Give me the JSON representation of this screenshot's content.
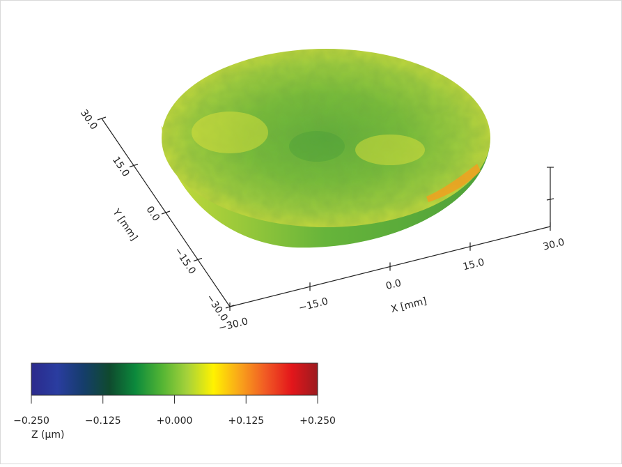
{
  "chart_data": {
    "type": "surface3d",
    "title": "",
    "x_axis": {
      "label": "X [mm]",
      "ticks": [
        "−30.0",
        "−15.0",
        "0.0",
        "15.0",
        "30.0"
      ],
      "range": [
        -30,
        30
      ]
    },
    "y_axis": {
      "label": "Y [mm]",
      "ticks": [
        "−30.0",
        "−15.0",
        "0.0",
        "15.0",
        "30.0"
      ],
      "range": [
        -30,
        30
      ]
    },
    "z_axis": {
      "label": "",
      "ticks": []
    },
    "surface": {
      "shape": "circular disc",
      "z_range_um": [
        -0.08,
        0.2
      ],
      "dominant_color_hex": "#6cbf3a",
      "highlight_color_hex": "#e8e037",
      "peak_color_hex": "#f0a020"
    },
    "colorbar": {
      "label": "Z (µm)",
      "ticks": [
        "−0.250",
        "−0.125",
        "+0.000",
        "+0.125",
        "+0.250"
      ],
      "range": [
        -0.25,
        0.25
      ],
      "colors": [
        "#2b2a8c",
        "#2a3da0",
        "#153d6b",
        "#0f4a2e",
        "#0c8a3c",
        "#52b434",
        "#a6d23a",
        "#fff200",
        "#f9a51a",
        "#f15a24",
        "#e3161b",
        "#9b1b1f"
      ]
    }
  }
}
